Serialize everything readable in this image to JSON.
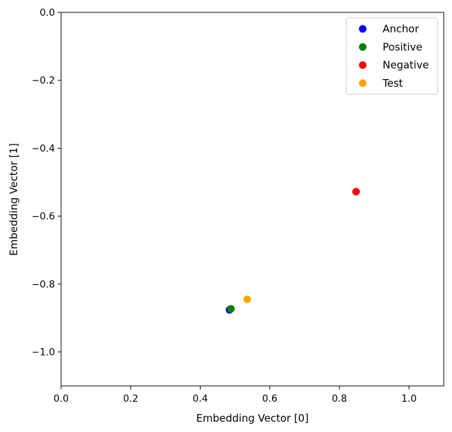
{
  "chart_data": {
    "type": "scatter",
    "title": "",
    "xlabel": "Embedding Vector [0]",
    "ylabel": "Embedding Vector [1]",
    "xlim": [
      0.0,
      1.1
    ],
    "ylim": [
      -1.1,
      0.0
    ],
    "x_ticks": [
      0.0,
      0.2,
      0.4,
      0.6,
      0.8,
      1.0
    ],
    "y_ticks": [
      0.0,
      -0.2,
      -0.4,
      -0.6,
      -0.8,
      -1.0
    ],
    "x_tick_labels": [
      "0.0",
      "0.2",
      "0.4",
      "0.6",
      "0.8",
      "1.0"
    ],
    "y_tick_labels": [
      "0.0",
      "−0.2",
      "−0.4",
      "−0.6",
      "−0.8",
      "−1.0"
    ],
    "grid": false,
    "legend_position": "top-right",
    "series": [
      {
        "name": "Anchor",
        "color": "#0000ff",
        "points": [
          {
            "x": 0.484,
            "y": -0.876
          }
        ]
      },
      {
        "name": "Positive",
        "color": "#008000",
        "points": [
          {
            "x": 0.488,
            "y": -0.873
          }
        ]
      },
      {
        "name": "Negative",
        "color": "#ff0000",
        "points": [
          {
            "x": 0.848,
            "y": -0.528
          }
        ]
      },
      {
        "name": "Test",
        "color": "#ffa500",
        "points": [
          {
            "x": 0.535,
            "y": -0.845
          }
        ]
      }
    ]
  }
}
